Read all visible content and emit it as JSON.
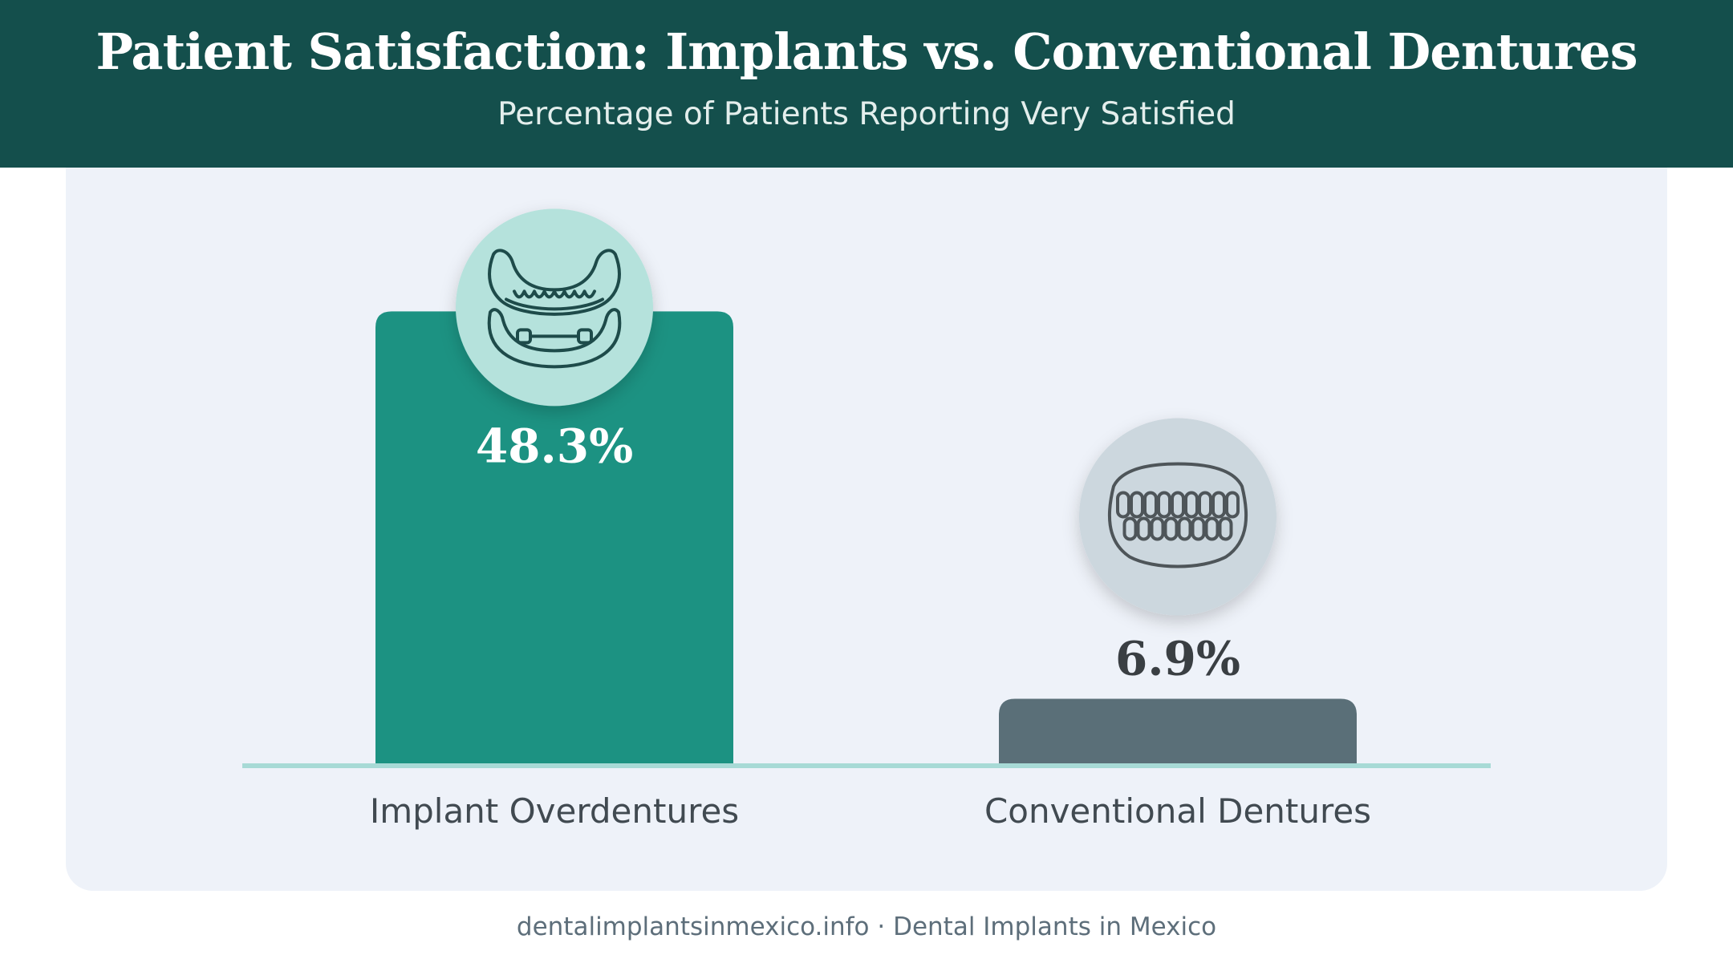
{
  "header": {
    "title": "Patient Satisfaction: Implants vs. Conventional Dentures",
    "subtitle": "Percentage of Patients Reporting Very Satisfied"
  },
  "chart_data": {
    "type": "bar",
    "title": "Patient Satisfaction: Implants vs. Conventional Dentures",
    "subtitle": "Percentage of Patients Reporting Very Satisfied",
    "categories": [
      "Implant Overdentures",
      "Conventional Dentures"
    ],
    "values": [
      48.3,
      6.9
    ],
    "value_labels": [
      "48.3%",
      "6.9%"
    ],
    "unit": "%",
    "ylim": [
      0,
      55
    ],
    "grid": false,
    "legend": "none",
    "colors": [
      "#1c9282",
      "#5a6f78"
    ],
    "icons": [
      "implant-overdenture-icon",
      "denture-icon"
    ]
  },
  "footer": {
    "text": "dentalimplantsinmexico.info · Dental Implants in Mexico"
  }
}
